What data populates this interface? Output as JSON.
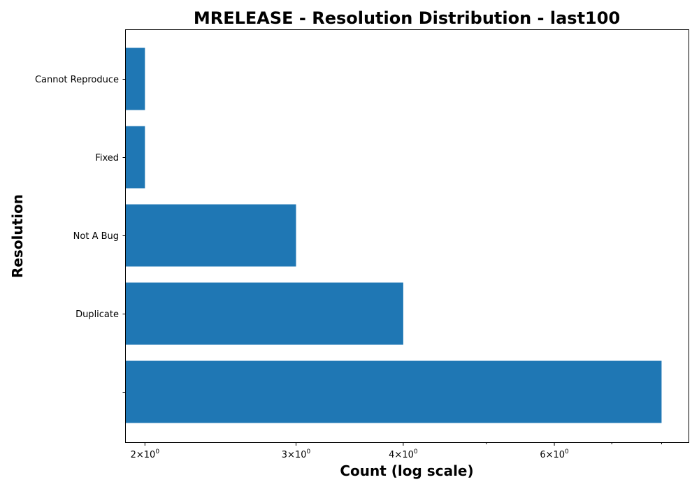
{
  "chart_data": {
    "type": "bar",
    "orientation": "horizontal",
    "title": "MRELEASE - Resolution Distribution - last100",
    "xlabel": "Count (log scale)",
    "ylabel": "Resolution",
    "x_scale": "log",
    "xlim": [
      1.9,
      8.6
    ],
    "categories": [
      "",
      "Duplicate",
      "Not A Bug",
      "Fixed",
      "Cannot Reproduce"
    ],
    "values": [
      8,
      4,
      3,
      2,
      2
    ],
    "x_ticks": [
      {
        "value": 2,
        "base": "2",
        "mult": "×",
        "pow_base": "10",
        "exp": "0"
      },
      {
        "value": 3,
        "base": "3",
        "mult": "×",
        "pow_base": "10",
        "exp": "0"
      },
      {
        "value": 4,
        "base": "4",
        "mult": "×",
        "pow_base": "10",
        "exp": "0"
      },
      {
        "value": 6,
        "base": "6",
        "mult": "×",
        "pow_base": "10",
        "exp": "0"
      }
    ],
    "x_minor_ticks": [
      5,
      7,
      8
    ],
    "bar_color": "#1f77b4",
    "grid": false
  }
}
